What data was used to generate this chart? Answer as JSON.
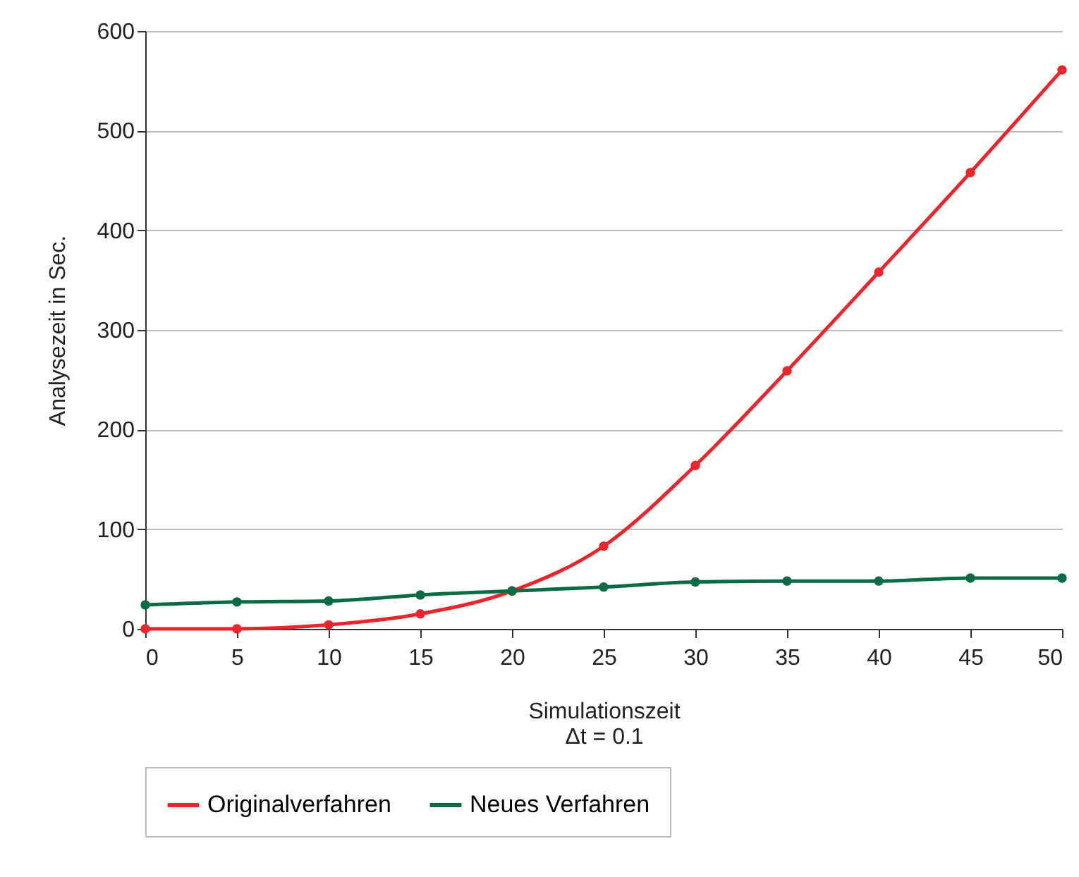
{
  "chart_data": {
    "type": "line",
    "xlabel": "Simulationszeit\nΔt = 0.1",
    "ylabel": "Analysezeit in Sec.",
    "x": [
      0,
      5,
      10,
      15,
      20,
      25,
      30,
      35,
      40,
      45,
      50
    ],
    "series": [
      {
        "name": "Originalverfahren",
        "color": "#e8262c",
        "values": [
          0,
          0,
          4,
          15,
          38,
          83,
          164,
          259,
          358,
          458,
          561
        ]
      },
      {
        "name": "Neues Verfahren",
        "color": "#0b6b45",
        "values": [
          24,
          27,
          28,
          34,
          38,
          42,
          47,
          48,
          48,
          51,
          51
        ]
      }
    ],
    "xlim": [
      0,
      50
    ],
    "xticks": [
      0,
      5,
      10,
      15,
      20,
      25,
      30,
      35,
      40,
      45,
      50
    ],
    "ylim": [
      0,
      600
    ],
    "yticks": [
      0,
      100,
      200,
      300,
      400,
      500,
      600
    ],
    "grid": "y",
    "legend": "bottom",
    "marker": "circle",
    "line_style": "solid"
  }
}
